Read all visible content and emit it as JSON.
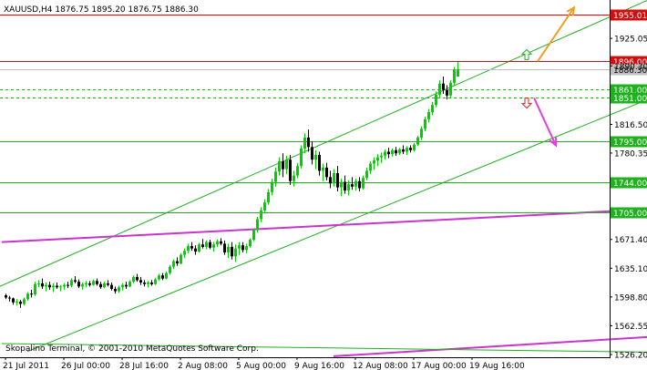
{
  "chart_data": {
    "type": "candlestick",
    "symbol_line": "XAUUSD,H4  1876.75 1895.20 1876.75 1886.30",
    "watermark": "Skopalino Terminal, © 2001-2010 MetaQuotes Software Corp.",
    "ylim": [
      1526.2,
      1970.0
    ],
    "price_ticks": [
      "1925.05",
      "1890.30",
      "1816.50",
      "1780.35",
      "1671.40",
      "1635.10",
      "1598.80",
      "1562.55",
      "1526.20"
    ],
    "x_ticks": [
      {
        "label": "21 Jul 2011",
        "bar": 0
      },
      {
        "label": "26 Jul 00:00",
        "bar": 16
      },
      {
        "label": "28 Jul 16:00",
        "bar": 32
      },
      {
        "label": "2 Aug 08:00",
        "bar": 48
      },
      {
        "label": "5 Aug 00:00",
        "bar": 64
      },
      {
        "label": "9 Aug 16:00",
        "bar": 80
      },
      {
        "label": "12 Aug 08:00",
        "bar": 96
      },
      {
        "label": "17 Aug 00:00",
        "bar": 112
      },
      {
        "label": "19 Aug 16:00",
        "bar": 128
      }
    ],
    "level_lines": [
      {
        "price": 1955.01,
        "label": "1955.01",
        "color": "#d01010"
      },
      {
        "price": 1896.0,
        "label": "1896.00",
        "color": "#d01010"
      },
      {
        "price": 1886.3,
        "label": "1886.30",
        "color": "#c0c0c0",
        "current": true
      },
      {
        "price": 1861.0,
        "label": "1861.00",
        "color": "#20b020",
        "dashed": true
      },
      {
        "price": 1851.0,
        "label": "1851.00",
        "color": "#20b020",
        "dashed": true
      },
      {
        "price": 1795.0,
        "label": "1795.00",
        "color": "#20b020"
      },
      {
        "price": 1744.0,
        "label": "1744.00",
        "color": "#20b020"
      },
      {
        "price": 1705.0,
        "label": "1705.00",
        "color": "#20b020"
      }
    ],
    "trend_lines": [
      {
        "name": "upper-channel",
        "color": "#20b020",
        "points": [
          [
            -7,
            1601
          ],
          [
            180,
            1981
          ]
        ]
      },
      {
        "name": "lower-channel",
        "color": "#20b020",
        "points": [
          [
            6,
            1530
          ],
          [
            180,
            1855
          ]
        ]
      },
      {
        "name": "magenta-resistance",
        "color": "#cc33cc",
        "points": [
          [
            -1,
            1668
          ],
          [
            179,
            1710
          ]
        ]
      },
      {
        "name": "magenta-bottom",
        "color": "#cc33cc",
        "points": [
          [
            90,
            1524
          ],
          [
            179,
            1549
          ]
        ]
      },
      {
        "name": "green-bottom",
        "color": "#20b020",
        "points": [
          [
            -1,
            1540
          ],
          [
            179,
            1529
          ]
        ]
      }
    ],
    "forecast_arrows": [
      {
        "direction": "up",
        "color": "#f0a020",
        "from": [
          146,
          1896
        ],
        "to": [
          156,
          1964
        ]
      },
      {
        "direction": "down",
        "color": "#e040e0",
        "from": [
          145,
          1850
        ],
        "to": [
          151,
          1790
        ]
      }
    ],
    "signal_markers": [
      {
        "direction": "up",
        "color": "#20b020",
        "at": [
          143,
          1904
        ]
      },
      {
        "direction": "down",
        "color": "#e02020",
        "at": [
          143,
          1844
        ]
      }
    ],
    "colors": {
      "bull": "#00d000",
      "bear": "#000000",
      "grid": "#20b020",
      "axis": "#000000"
    },
    "series": [
      {
        "values": [
          [
            1601,
            1603,
            1596,
            1598
          ],
          [
            1598,
            1600,
            1593,
            1597
          ],
          [
            1597,
            1598,
            1589,
            1592
          ],
          [
            1592,
            1596,
            1588,
            1593
          ],
          [
            1593,
            1595,
            1585,
            1590
          ],
          [
            1590,
            1598,
            1588,
            1596
          ],
          [
            1596,
            1605,
            1594,
            1603
          ],
          [
            1603,
            1608,
            1598,
            1602
          ],
          [
            1602,
            1618,
            1600,
            1615
          ],
          [
            1615,
            1620,
            1611,
            1616
          ],
          [
            1616,
            1622,
            1609,
            1612
          ],
          [
            1612,
            1617,
            1606,
            1614
          ],
          [
            1614,
            1618,
            1608,
            1611
          ],
          [
            1611,
            1616,
            1605,
            1613
          ],
          [
            1613,
            1617,
            1609,
            1611
          ],
          [
            1611,
            1614,
            1606,
            1612
          ],
          [
            1612,
            1616,
            1608,
            1614
          ],
          [
            1614,
            1618,
            1610,
            1613
          ],
          [
            1613,
            1622,
            1611,
            1620
          ],
          [
            1620,
            1625,
            1616,
            1618
          ],
          [
            1618,
            1621,
            1610,
            1612
          ],
          [
            1612,
            1617,
            1608,
            1615
          ],
          [
            1615,
            1619,
            1611,
            1616
          ],
          [
            1616,
            1619,
            1612,
            1614
          ],
          [
            1614,
            1621,
            1613,
            1619
          ],
          [
            1619,
            1622,
            1613,
            1615
          ],
          [
            1615,
            1618,
            1609,
            1611
          ],
          [
            1611,
            1618,
            1610,
            1616
          ],
          [
            1616,
            1620,
            1612,
            1614
          ],
          [
            1614,
            1617,
            1607,
            1609
          ],
          [
            1609,
            1612,
            1603,
            1606
          ],
          [
            1606,
            1613,
            1604,
            1611
          ],
          [
            1611,
            1616,
            1607,
            1614
          ],
          [
            1614,
            1618,
            1609,
            1612
          ],
          [
            1612,
            1620,
            1611,
            1618
          ],
          [
            1618,
            1626,
            1616,
            1624
          ],
          [
            1624,
            1628,
            1618,
            1620
          ],
          [
            1620,
            1624,
            1614,
            1617
          ],
          [
            1617,
            1620,
            1612,
            1615
          ],
          [
            1615,
            1619,
            1611,
            1617
          ],
          [
            1617,
            1620,
            1613,
            1615
          ],
          [
            1615,
            1623,
            1614,
            1621
          ],
          [
            1621,
            1628,
            1619,
            1626
          ],
          [
            1626,
            1629,
            1620,
            1622
          ],
          [
            1622,
            1631,
            1621,
            1629
          ],
          [
            1629,
            1639,
            1627,
            1637
          ],
          [
            1637,
            1646,
            1634,
            1644
          ],
          [
            1644,
            1649,
            1638,
            1641
          ],
          [
            1641,
            1654,
            1640,
            1652
          ],
          [
            1652,
            1660,
            1648,
            1657
          ],
          [
            1657,
            1666,
            1654,
            1663
          ],
          [
            1663,
            1668,
            1657,
            1660
          ],
          [
            1660,
            1664,
            1652,
            1656
          ],
          [
            1656,
            1667,
            1655,
            1665
          ],
          [
            1665,
            1672,
            1660,
            1662
          ],
          [
            1662,
            1670,
            1659,
            1668
          ],
          [
            1668,
            1671,
            1659,
            1661
          ],
          [
            1661,
            1668,
            1656,
            1665
          ],
          [
            1665,
            1671,
            1662,
            1669
          ],
          [
            1669,
            1673,
            1664,
            1666
          ],
          [
            1666,
            1670,
            1652,
            1655
          ],
          [
            1655,
            1666,
            1648,
            1662
          ],
          [
            1662,
            1668,
            1646,
            1650
          ],
          [
            1650,
            1665,
            1643,
            1660
          ],
          [
            1660,
            1668,
            1652,
            1664
          ],
          [
            1664,
            1668,
            1655,
            1658
          ],
          [
            1658,
            1666,
            1654,
            1663
          ],
          [
            1663,
            1673,
            1661,
            1671
          ],
          [
            1671,
            1685,
            1669,
            1683
          ],
          [
            1683,
            1700,
            1680,
            1697
          ],
          [
            1697,
            1712,
            1693,
            1708
          ],
          [
            1708,
            1722,
            1704,
            1718
          ],
          [
            1718,
            1735,
            1715,
            1731
          ],
          [
            1731,
            1748,
            1727,
            1744
          ],
          [
            1744,
            1762,
            1738,
            1757
          ],
          [
            1757,
            1775,
            1752,
            1770
          ],
          [
            1770,
            1780,
            1750,
            1760
          ],
          [
            1760,
            1777,
            1754,
            1772
          ],
          [
            1772,
            1778,
            1740,
            1745
          ],
          [
            1745,
            1758,
            1738,
            1752
          ],
          [
            1752,
            1768,
            1749,
            1764
          ],
          [
            1764,
            1790,
            1761,
            1786
          ],
          [
            1786,
            1805,
            1780,
            1800
          ],
          [
            1800,
            1810,
            1782,
            1788
          ],
          [
            1788,
            1795,
            1766,
            1772
          ],
          [
            1772,
            1784,
            1760,
            1778
          ],
          [
            1778,
            1782,
            1752,
            1758
          ],
          [
            1758,
            1767,
            1745,
            1762
          ],
          [
            1762,
            1768,
            1746,
            1750
          ],
          [
            1750,
            1758,
            1736,
            1742
          ],
          [
            1742,
            1760,
            1738,
            1755
          ],
          [
            1755,
            1764,
            1732,
            1737
          ],
          [
            1737,
            1748,
            1726,
            1744
          ],
          [
            1744,
            1752,
            1729,
            1733
          ],
          [
            1733,
            1746,
            1727,
            1741
          ],
          [
            1741,
            1750,
            1734,
            1738
          ],
          [
            1738,
            1748,
            1733,
            1745
          ],
          [
            1745,
            1750,
            1732,
            1736
          ],
          [
            1736,
            1752,
            1734,
            1749
          ],
          [
            1749,
            1762,
            1746,
            1758
          ],
          [
            1758,
            1770,
            1754,
            1767
          ],
          [
            1767,
            1775,
            1759,
            1771
          ],
          [
            1771,
            1779,
            1764,
            1775
          ],
          [
            1775,
            1781,
            1768,
            1777
          ],
          [
            1777,
            1785,
            1772,
            1782
          ],
          [
            1782,
            1787,
            1774,
            1779
          ],
          [
            1779,
            1786,
            1776,
            1784
          ],
          [
            1784,
            1788,
            1777,
            1780
          ],
          [
            1780,
            1787,
            1778,
            1785
          ],
          [
            1785,
            1790,
            1779,
            1782
          ],
          [
            1782,
            1789,
            1778,
            1787
          ],
          [
            1787,
            1790,
            1781,
            1784
          ],
          [
            1784,
            1793,
            1782,
            1791
          ],
          [
            1791,
            1802,
            1789,
            1800
          ],
          [
            1800,
            1814,
            1797,
            1811
          ],
          [
            1811,
            1826,
            1808,
            1823
          ],
          [
            1823,
            1836,
            1819,
            1832
          ],
          [
            1832,
            1845,
            1828,
            1841
          ],
          [
            1841,
            1858,
            1838,
            1854
          ],
          [
            1854,
            1872,
            1850,
            1868
          ],
          [
            1868,
            1877,
            1855,
            1860
          ],
          [
            1860,
            1866,
            1848,
            1853
          ],
          [
            1853,
            1872,
            1850,
            1869
          ],
          [
            1869,
            1889,
            1866,
            1886
          ],
          [
            1876.75,
            1895.2,
            1876.75,
            1886.3
          ]
        ]
      }
    ]
  }
}
